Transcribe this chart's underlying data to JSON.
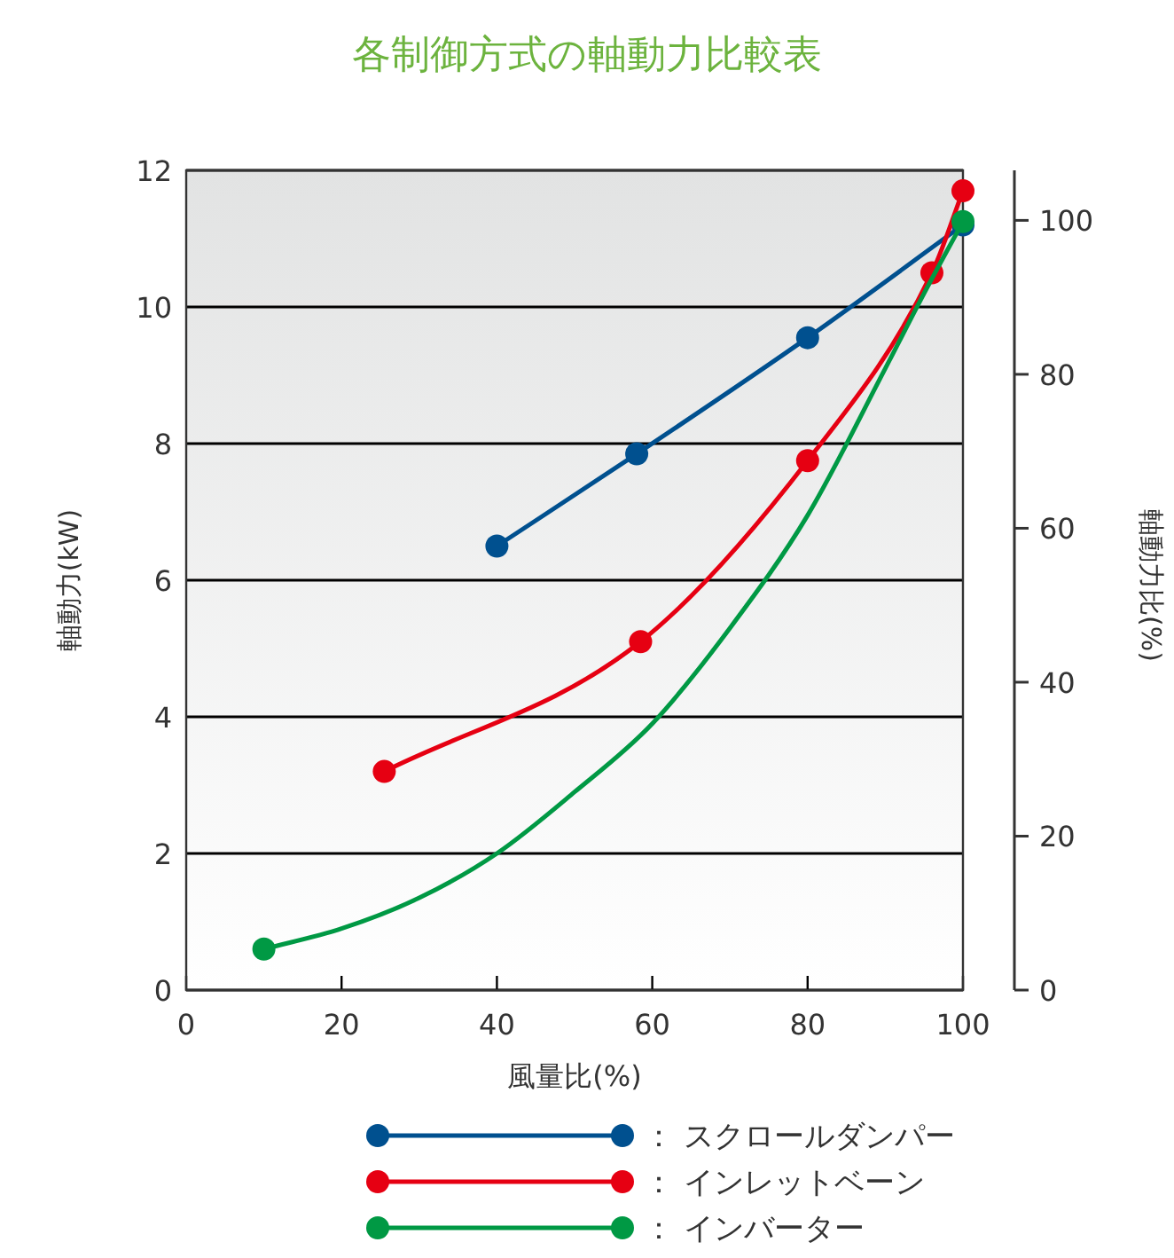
{
  "chart_data": {
    "type": "line",
    "title": "各制御方式の軸動力比較表",
    "xlabel": "風量比(%)",
    "ylabel": "軸動力(kW)",
    "y2label": "軸動力比(%)",
    "xlim": [
      0,
      100
    ],
    "xticks": [
      0,
      20,
      40,
      60,
      80,
      100
    ],
    "ylim": [
      0,
      12
    ],
    "yticks": [
      0,
      2,
      4,
      6,
      8,
      10,
      12
    ],
    "y2lim": [
      0,
      106.5
    ],
    "y2ticks": [
      0,
      20,
      40,
      60,
      80,
      100
    ],
    "grid": "y",
    "legend": "bottom",
    "marker": "circle",
    "line_style": "solid",
    "series": [
      {
        "name": "： スクロールダンパー",
        "color": "#00508f",
        "x": [
          40,
          58,
          80,
          100
        ],
        "values": [
          6.5,
          7.85,
          9.55,
          11.2
        ]
      },
      {
        "name": "： インレットベーン",
        "color": "#e60012",
        "x": [
          25.5,
          58.5,
          80,
          96,
          100
        ],
        "values": [
          3.2,
          5.1,
          7.75,
          10.5,
          11.7
        ]
      },
      {
        "name": "： インバーター",
        "color": "#009944",
        "marker": "none",
        "x": [
          10,
          20,
          30,
          40,
          50,
          60,
          70,
          80,
          90,
          95,
          100
        ],
        "values": [
          0.6,
          0.9,
          1.35,
          2.0,
          2.9,
          3.9,
          5.3,
          6.95,
          9.1,
          10.2,
          11.25
        ]
      },
      {
        "type": "scatter",
        "color": "#009944",
        "x": [
          10,
          100
        ],
        "values": [
          0.6,
          11.25
        ]
      }
    ]
  }
}
